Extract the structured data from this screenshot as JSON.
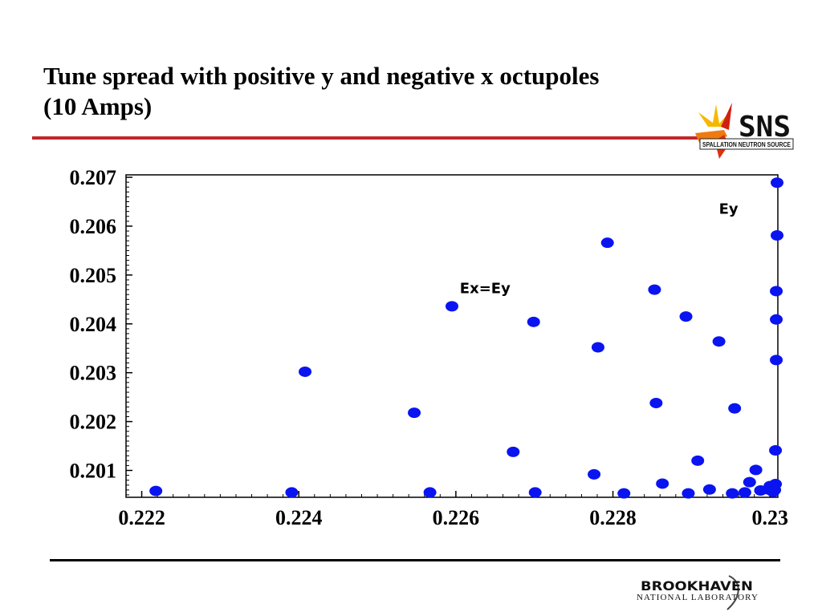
{
  "slide": {
    "title_line1": "Tune spread with positive y and negative x octupoles",
    "title_line2": "(10 Amps)"
  },
  "logos": {
    "sns_text": "SNS",
    "sns_subtext": "SPALLATION NEUTRON SOURCE",
    "bnl_text": "BROOKHAVEN",
    "bnl_subtext": "NATIONAL LABORATORY"
  },
  "colors": {
    "point": "#0a14f0",
    "rule_red": "#c0282a"
  },
  "chart_data": {
    "type": "scatter",
    "title": "",
    "xlabel": "",
    "ylabel": "",
    "xlim": [
      0.2218,
      0.2301
    ],
    "ylim": [
      0.20045,
      0.20705
    ],
    "x_ticks": [
      {
        "value": 0.222,
        "label": "0.222"
      },
      {
        "value": 0.224,
        "label": "0.224"
      },
      {
        "value": 0.226,
        "label": "0.226"
      },
      {
        "value": 0.228,
        "label": "0.228"
      },
      {
        "value": 0.23,
        "label": "0.23"
      }
    ],
    "y_ticks": [
      {
        "value": 0.201,
        "label": "0.201"
      },
      {
        "value": 0.202,
        "label": "0.202"
      },
      {
        "value": 0.203,
        "label": "0.203"
      },
      {
        "value": 0.204,
        "label": "0.204"
      },
      {
        "value": 0.205,
        "label": "0.205"
      },
      {
        "value": 0.206,
        "label": "0.206"
      },
      {
        "value": 0.207,
        "label": "0.207"
      }
    ],
    "grid": false,
    "annotations": [
      {
        "text": "Ey",
        "x": 0.22935,
        "y": 0.20625
      },
      {
        "text": "Ex=Ey",
        "x": 0.22605,
        "y": 0.20463
      }
    ],
    "points": [
      [
        0.22218,
        0.20058
      ],
      [
        0.22391,
        0.20055
      ],
      [
        0.22408,
        0.20302
      ],
      [
        0.22547,
        0.20218
      ],
      [
        0.22567,
        0.20055
      ],
      [
        0.22595,
        0.20436
      ],
      [
        0.22673,
        0.20138
      ],
      [
        0.22701,
        0.20055
      ],
      [
        0.22699,
        0.20404
      ],
      [
        0.22776,
        0.20092
      ],
      [
        0.22781,
        0.20352
      ],
      [
        0.22793,
        0.20566
      ],
      [
        0.22814,
        0.20053
      ],
      [
        0.22853,
        0.2047
      ],
      [
        0.22855,
        0.20238
      ],
      [
        0.22863,
        0.20073
      ],
      [
        0.22893,
        0.20415
      ],
      [
        0.22896,
        0.20053
      ],
      [
        0.22908,
        0.2012
      ],
      [
        0.22923,
        0.20061
      ],
      [
        0.22935,
        0.20364
      ],
      [
        0.22952,
        0.20053
      ],
      [
        0.22955,
        0.20227
      ],
      [
        0.22968,
        0.20055
      ],
      [
        0.22974,
        0.20076
      ],
      [
        0.22982,
        0.20101
      ],
      [
        0.22988,
        0.20059
      ],
      [
        0.22998,
        0.20061
      ],
      [
        0.23,
        0.20068
      ],
      [
        0.23004,
        0.20056
      ],
      [
        0.23006,
        0.2006
      ],
      [
        0.23007,
        0.20072
      ],
      [
        0.23007,
        0.20141
      ],
      [
        0.23008,
        0.20326
      ],
      [
        0.23008,
        0.20409
      ],
      [
        0.23008,
        0.20467
      ],
      [
        0.23009,
        0.20581
      ],
      [
        0.23009,
        0.20689
      ]
    ]
  }
}
